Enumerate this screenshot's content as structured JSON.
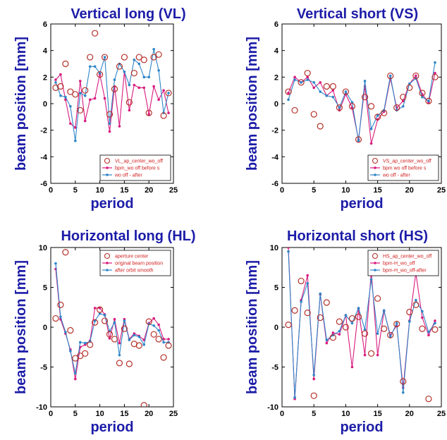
{
  "colors": {
    "title": "#1c1ca8",
    "ring": "#b5302a",
    "magenta": "#d81b7e",
    "blue": "#2f86c8"
  },
  "chart_data": [
    {
      "type": "line",
      "title": "Vertical long (VL)",
      "xlabel": "period",
      "ylabel": "beam position [mm]",
      "xlim": [
        0,
        25
      ],
      "ylim": [
        -6,
        6
      ],
      "xticks": [
        0,
        5,
        10,
        15,
        20,
        25
      ],
      "yticks": [
        -6,
        -4,
        -2,
        0,
        2,
        4,
        6
      ],
      "legend_position": "bottom-right",
      "series": [
        {
          "name": "VL_ap_center_wo_off",
          "style": "circle",
          "x": [
            1,
            2,
            3,
            4,
            5,
            6,
            7,
            8,
            9,
            10,
            11,
            12,
            13,
            14,
            15,
            16,
            17,
            18,
            19,
            20,
            21,
            22,
            23,
            24
          ],
          "values": [
            1.2,
            1.3,
            3.0,
            0.9,
            0.7,
            -0.5,
            1.0,
            3.5,
            5.3,
            2.2,
            3.5,
            -0.8,
            1.1,
            2.8,
            3.5,
            0.1,
            2.3,
            3.5,
            3.3,
            -0.7,
            3.5,
            3.7,
            -0.9,
            0.8
          ]
        },
        {
          "name": "bpm_wo off before s",
          "style": "magenta",
          "x": [
            1,
            2,
            3,
            4,
            5,
            6,
            7,
            8,
            9,
            10,
            11,
            12,
            13,
            14,
            15,
            16,
            17,
            18,
            19,
            20,
            21,
            22,
            23,
            24
          ],
          "values": [
            1.8,
            2.2,
            0.3,
            -1.5,
            -1.8,
            1.7,
            -1.3,
            0.3,
            0.4,
            2.2,
            0.4,
            -2.1,
            1.3,
            -1.7,
            2.4,
            -0.5,
            1.4,
            1.2,
            1.2,
            -0.8,
            1.3,
            0.3,
            1.0,
            -0.7
          ]
        },
        {
          "name": "wo off - after",
          "style": "blue",
          "x": [
            1,
            2,
            3,
            4,
            5,
            6,
            7,
            8,
            9,
            10,
            11,
            12,
            13,
            14,
            15,
            16,
            17,
            18,
            19,
            20,
            21,
            22,
            23,
            24
          ],
          "values": [
            1.6,
            0.6,
            0.5,
            -0.2,
            -2.8,
            0.8,
            0.6,
            2.8,
            2.8,
            2.3,
            3.5,
            -1.5,
            1.8,
            3.0,
            2.4,
            1.4,
            3.3,
            3.0,
            2.0,
            2.0,
            4.1,
            2.5,
            -0.7,
            0.8
          ]
        }
      ]
    },
    {
      "type": "line",
      "title": "Vertical short (VS)",
      "xlabel": "period",
      "ylabel": "beam position [mm]",
      "xlim": [
        0,
        25
      ],
      "ylim": [
        -6,
        6
      ],
      "xticks": [
        0,
        5,
        10,
        15,
        20,
        25
      ],
      "yticks": [
        -6,
        -4,
        -2,
        0,
        2,
        4,
        6
      ],
      "legend_position": "bottom-right",
      "series": [
        {
          "name": "VS_ap_center_wo_off",
          "style": "circle",
          "x": [
            1,
            2,
            3,
            4,
            5,
            6,
            7,
            8,
            9,
            10,
            11,
            12,
            13,
            14,
            15,
            16,
            17,
            18,
            19,
            20,
            21,
            22,
            23,
            24
          ],
          "values": [
            0.9,
            -0.5,
            1.6,
            2.3,
            -0.8,
            -1.7,
            1.3,
            1.3,
            -0.3,
            0.9,
            -0.2,
            -2.7,
            0.5,
            -0.2,
            -1.0,
            -0.7,
            2.1,
            -0.3,
            0.5,
            1.2,
            2.1,
            0.8,
            0.2,
            2.0
          ]
        },
        {
          "name": "bpm wo off before s",
          "style": "magenta",
          "x": [
            1,
            2,
            3,
            4,
            5,
            6,
            7,
            8,
            9,
            10,
            11,
            12,
            13,
            14,
            15,
            16,
            17,
            18,
            19,
            20,
            21,
            22,
            23,
            24
          ],
          "values": [
            0.8,
            2.0,
            1.6,
            2.0,
            1.2,
            1.6,
            0.6,
            1.0,
            -0.5,
            0.7,
            -0.3,
            -2.7,
            1.3,
            -3.0,
            -1.2,
            -0.6,
            1.9,
            -0.3,
            0.2,
            1.5,
            2.1,
            0.7,
            0.1,
            2.3
          ]
        },
        {
          "name": "wo off - after",
          "style": "blue",
          "x": [
            1,
            2,
            3,
            4,
            5,
            6,
            7,
            8,
            9,
            10,
            11,
            12,
            13,
            14,
            15,
            16,
            17,
            18,
            19,
            20,
            21,
            22,
            23,
            24
          ],
          "values": [
            0.3,
            1.8,
            1.6,
            1.8,
            1.6,
            0.9,
            0.6,
            0.5,
            -0.3,
            0.9,
            0.1,
            -2.8,
            1.7,
            -1.9,
            -0.9,
            -0.5,
            2.1,
            -0.5,
            -0.2,
            1.5,
            1.9,
            0.5,
            0.2,
            3.1
          ]
        }
      ]
    },
    {
      "type": "line",
      "title": "Horizontal long (HL)",
      "xlabel": "period",
      "ylabel": "beam position [mm]",
      "xlim": [
        0,
        25
      ],
      "ylim": [
        -10,
        10
      ],
      "xticks": [
        0,
        5,
        10,
        15,
        20,
        25
      ],
      "yticks": [
        -10,
        -5,
        0,
        5,
        10
      ],
      "legend_position": "top-right",
      "series": [
        {
          "name": "aperture center",
          "style": "circle",
          "x": [
            1,
            2,
            3,
            4,
            5,
            6,
            7,
            8,
            9,
            10,
            11,
            12,
            13,
            14,
            15,
            16,
            17,
            18,
            19,
            20,
            21,
            22,
            23,
            24
          ],
          "values": [
            1.1,
            2.8,
            9.4,
            -0.4,
            -3.9,
            -3.6,
            -3.3,
            -2.2,
            0.6,
            2.2,
            0.8,
            -0.9,
            -1.5,
            -4.5,
            -0.2,
            -4.6,
            -2.1,
            -2.3,
            -9.8,
            0.7,
            -0.9,
            -1.5,
            -3.8,
            -2.3
          ]
        },
        {
          "name": "original beam position",
          "style": "magenta",
          "x": [
            1,
            2,
            3,
            4,
            5,
            6,
            7,
            8,
            9,
            10,
            11,
            12,
            13,
            14,
            15,
            16,
            17,
            18,
            19,
            20,
            21,
            22,
            23,
            24
          ],
          "values": [
            7.3,
            1.0,
            -0.8,
            -2.8,
            -6.5,
            -2.5,
            -2.2,
            -1.7,
            2.4,
            2.4,
            1.6,
            -1.4,
            1.0,
            -2.0,
            1.0,
            -1.5,
            -0.8,
            -1.1,
            -1.6,
            0.5,
            1.1,
            0.3,
            -1.5,
            -1.5
          ]
        },
        {
          "name": "after orbit smooth",
          "style": "blue",
          "x": [
            1,
            2,
            3,
            4,
            5,
            6,
            7,
            8,
            9,
            10,
            11,
            12,
            13,
            14,
            15,
            16,
            17,
            18,
            19,
            20,
            21,
            22,
            23,
            24
          ],
          "values": [
            8.0,
            1.3,
            -0.6,
            -3.0,
            -5.8,
            -1.9,
            -2.0,
            -1.8,
            0.8,
            1.7,
            1.5,
            -0.5,
            0.6,
            -3.5,
            0.8,
            -1.6,
            -1.0,
            -1.2,
            -2.2,
            0.4,
            0.2,
            -0.4,
            -1.9,
            -1.9
          ]
        }
      ]
    },
    {
      "type": "line",
      "title": "Horizontal short (HS)",
      "xlabel": "period",
      "ylabel": "beam position [mm]",
      "xlim": [
        0,
        25
      ],
      "ylim": [
        -10,
        10
      ],
      "xticks": [
        0,
        5,
        10,
        15,
        20,
        25
      ],
      "yticks": [
        -10,
        -5,
        0,
        5,
        10
      ],
      "legend_position": "top-right",
      "series": [
        {
          "name": "HS_ap_center_wo_off",
          "style": "circle",
          "x": [
            1,
            2,
            3,
            4,
            5,
            6,
            7,
            8,
            9,
            10,
            11,
            12,
            13,
            14,
            15,
            16,
            17,
            18,
            19,
            20,
            21,
            22,
            23,
            24
          ],
          "values": [
            0.3,
            2.1,
            5.8,
            1.8,
            -8.6,
            1.2,
            3.1,
            -1.3,
            0.7,
            0.0,
            1.1,
            1.3,
            -0.8,
            -3.3,
            3.6,
            -0.2,
            -1.0,
            0.4,
            -6.8,
            1.9,
            2.8,
            -0.2,
            -9.0,
            -0.3
          ]
        },
        {
          "name": "bpm-H_wo_off",
          "style": "magenta",
          "x": [
            1,
            2,
            3,
            4,
            5,
            6,
            7,
            8,
            9,
            10,
            11,
            12,
            13,
            14,
            15,
            16,
            17,
            18,
            19,
            20,
            21,
            22,
            23,
            24
          ],
          "values": [
            10.0,
            -9.0,
            3.4,
            6.5,
            -6.5,
            4.1,
            -2.0,
            -0.7,
            -0.9,
            1.5,
            -5.0,
            2.3,
            -3.5,
            7.0,
            -3.5,
            2.0,
            -1.0,
            0.2,
            -7.6,
            0.8,
            6.8,
            1.2,
            -1.0,
            0.8
          ]
        },
        {
          "name": "bpm-H_wo_off-after",
          "style": "blue",
          "x": [
            1,
            2,
            3,
            4,
            5,
            6,
            7,
            8,
            9,
            10,
            11,
            12,
            13,
            14,
            15,
            16,
            17,
            18,
            19,
            20,
            21,
            22,
            23,
            24
          ],
          "values": [
            9.5,
            -8.8,
            3.2,
            5.5,
            -6.0,
            4.2,
            -1.6,
            -1.0,
            -0.5,
            1.5,
            0.5,
            2.4,
            -0.3,
            6.0,
            -0.8,
            2.1,
            -1.2,
            0.5,
            -8.2,
            0.7,
            3.4,
            2.0,
            -0.6,
            0.5
          ]
        }
      ]
    }
  ]
}
